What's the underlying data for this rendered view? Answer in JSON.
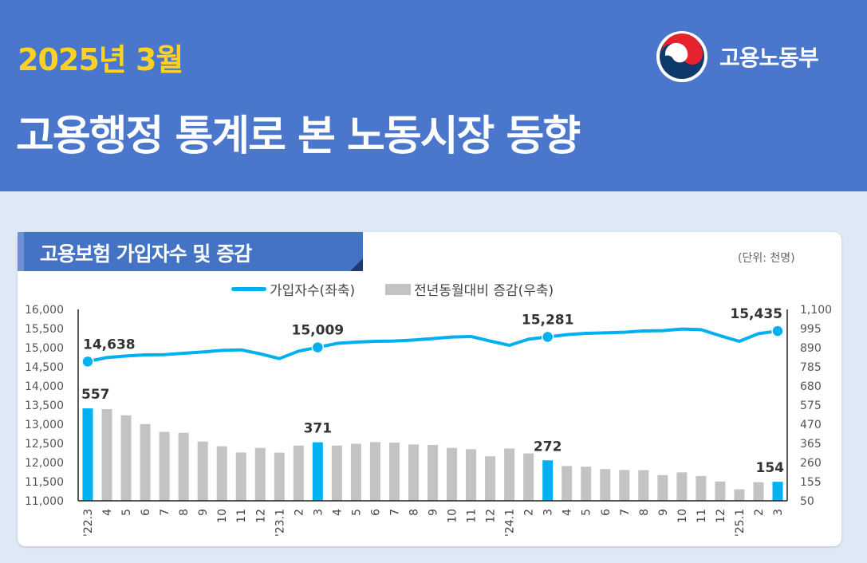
{
  "header": {
    "date": "2025년 3월",
    "title": "고용행정 통계로 본 노동시장 동향",
    "ministry": "고용노동부"
  },
  "section": {
    "title": "고용보험 가입자수 및 증감",
    "unit": "(단위: 천명)"
  },
  "colors": {
    "header": "#4a77cb",
    "accent": "#00b0f0",
    "bar": "#c3c3c3",
    "highlight_bar": "#00b0f0",
    "date": "#ffd21f"
  },
  "chart_data": {
    "type": "bar+line",
    "legend_position": "top",
    "categories": [
      "'22.3",
      "4",
      "5",
      "6",
      "7",
      "8",
      "9",
      "10",
      "11",
      "12",
      "'23.1",
      "2",
      "3",
      "4",
      "5",
      "6",
      "7",
      "8",
      "9",
      "10",
      "11",
      "12",
      "'24.1",
      "2",
      "3",
      "4",
      "5",
      "6",
      "7",
      "8",
      "9",
      "10",
      "11",
      "12",
      "'25.1",
      "2",
      "3"
    ],
    "left_axis": {
      "range": [
        11000,
        16000
      ],
      "ticks": [
        "11,000",
        "11,500",
        "12,000",
        "12,500",
        "13,000",
        "13,500",
        "14,000",
        "14,500",
        "15,000",
        "15,500",
        "16,000"
      ]
    },
    "right_axis": {
      "range": [
        50,
        1100
      ],
      "ticks": [
        "50",
        "155",
        "260",
        "365",
        "470",
        "575",
        "680",
        "785",
        "890",
        "995",
        "1,100"
      ]
    },
    "series": [
      {
        "name": "가입자수(좌축)",
        "type": "line",
        "axis": "left",
        "values": [
          14638,
          14743,
          14785,
          14812,
          14819,
          14854,
          14889,
          14930,
          14944,
          14840,
          14715,
          14910,
          15009,
          15111,
          15146,
          15167,
          15174,
          15200,
          15236,
          15278,
          15292,
          15174,
          15062,
          15222,
          15281,
          15340,
          15375,
          15389,
          15403,
          15438,
          15445,
          15486,
          15472,
          15312,
          15167,
          15368,
          15435
        ],
        "labels": {
          "0": "14,638",
          "12": "15,009",
          "24": "15,281",
          "36": "15,435"
        }
      },
      {
        "name": "전년동월대비 증감(우축)",
        "type": "bar",
        "axis": "right",
        "values": [
          557,
          553,
          519,
          471,
          428,
          423,
          375,
          349,
          315,
          340,
          314,
          353,
          371,
          353,
          363,
          372,
          369,
          359,
          356,
          340,
          333,
          294,
          337,
          310,
          272,
          241,
          237,
          224,
          219,
          218,
          191,
          206,
          186,
          156,
          113,
          152,
          154
        ],
        "labels": {
          "0": "557",
          "12": "371",
          "24": "272",
          "36": "154"
        }
      }
    ],
    "highlighted": [
      0,
      12,
      24,
      36
    ]
  }
}
